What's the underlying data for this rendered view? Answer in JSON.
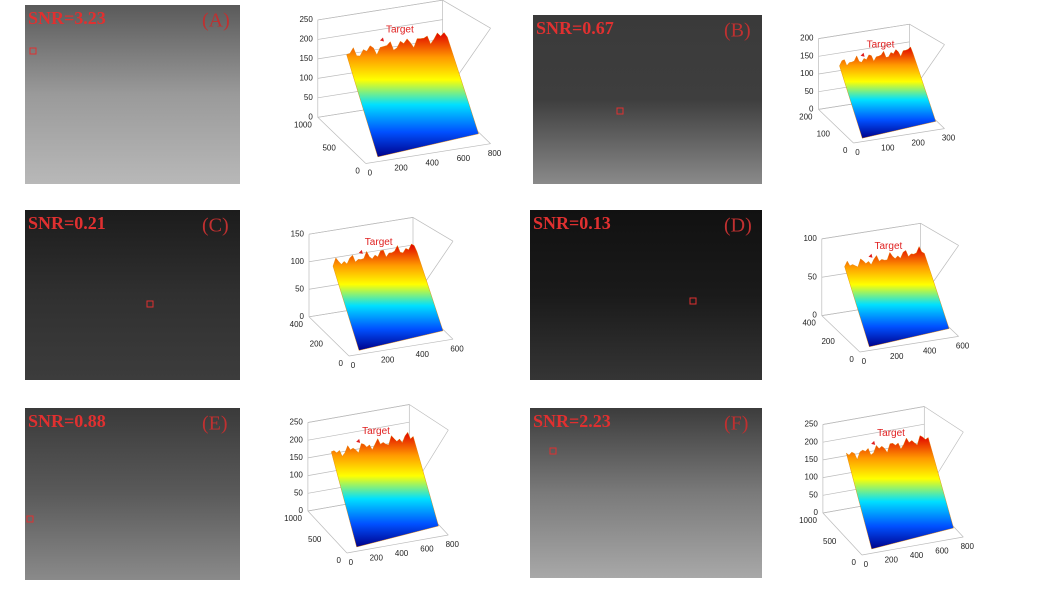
{
  "panels": [
    {
      "label": "(A)",
      "snr": "SNR=3.23",
      "target": "Target",
      "z_ticks": [
        0,
        50,
        100,
        150,
        200,
        250
      ],
      "y_ticks": [
        1000,
        500,
        0
      ],
      "x_ticks": [
        0,
        200,
        400,
        600,
        800
      ]
    },
    {
      "label": "(B)",
      "snr": "SNR=0.67",
      "target": "Target",
      "z_ticks": [
        0,
        50,
        100,
        150,
        200
      ],
      "y_ticks": [
        200,
        100,
        0
      ],
      "x_ticks": [
        0,
        100,
        200,
        300
      ]
    },
    {
      "label": "(C)",
      "snr": "SNR=0.21",
      "target": "Target",
      "z_ticks": [
        0,
        50,
        100,
        150
      ],
      "y_ticks": [
        400,
        200,
        0
      ],
      "x_ticks": [
        0,
        200,
        400,
        600
      ]
    },
    {
      "label": "(D)",
      "snr": "SNR=0.13",
      "target": "Target",
      "z_ticks": [
        0,
        50,
        100
      ],
      "y_ticks": [
        400,
        200,
        0
      ],
      "x_ticks": [
        0,
        200,
        400,
        600
      ]
    },
    {
      "label": "(E)",
      "snr": "SNR=0.88",
      "target": "Target",
      "z_ticks": [
        0,
        50,
        100,
        150,
        200,
        250
      ],
      "y_ticks": [
        1000,
        500,
        0
      ],
      "x_ticks": [
        0,
        200,
        400,
        600,
        800
      ]
    },
    {
      "label": "(F)",
      "snr": "SNR=2.23",
      "target": "Target",
      "z_ticks": [
        0,
        50,
        100,
        150,
        200,
        250
      ],
      "y_ticks": [
        1000,
        500,
        0
      ],
      "x_ticks": [
        0,
        200,
        400,
        600,
        800
      ]
    }
  ]
}
